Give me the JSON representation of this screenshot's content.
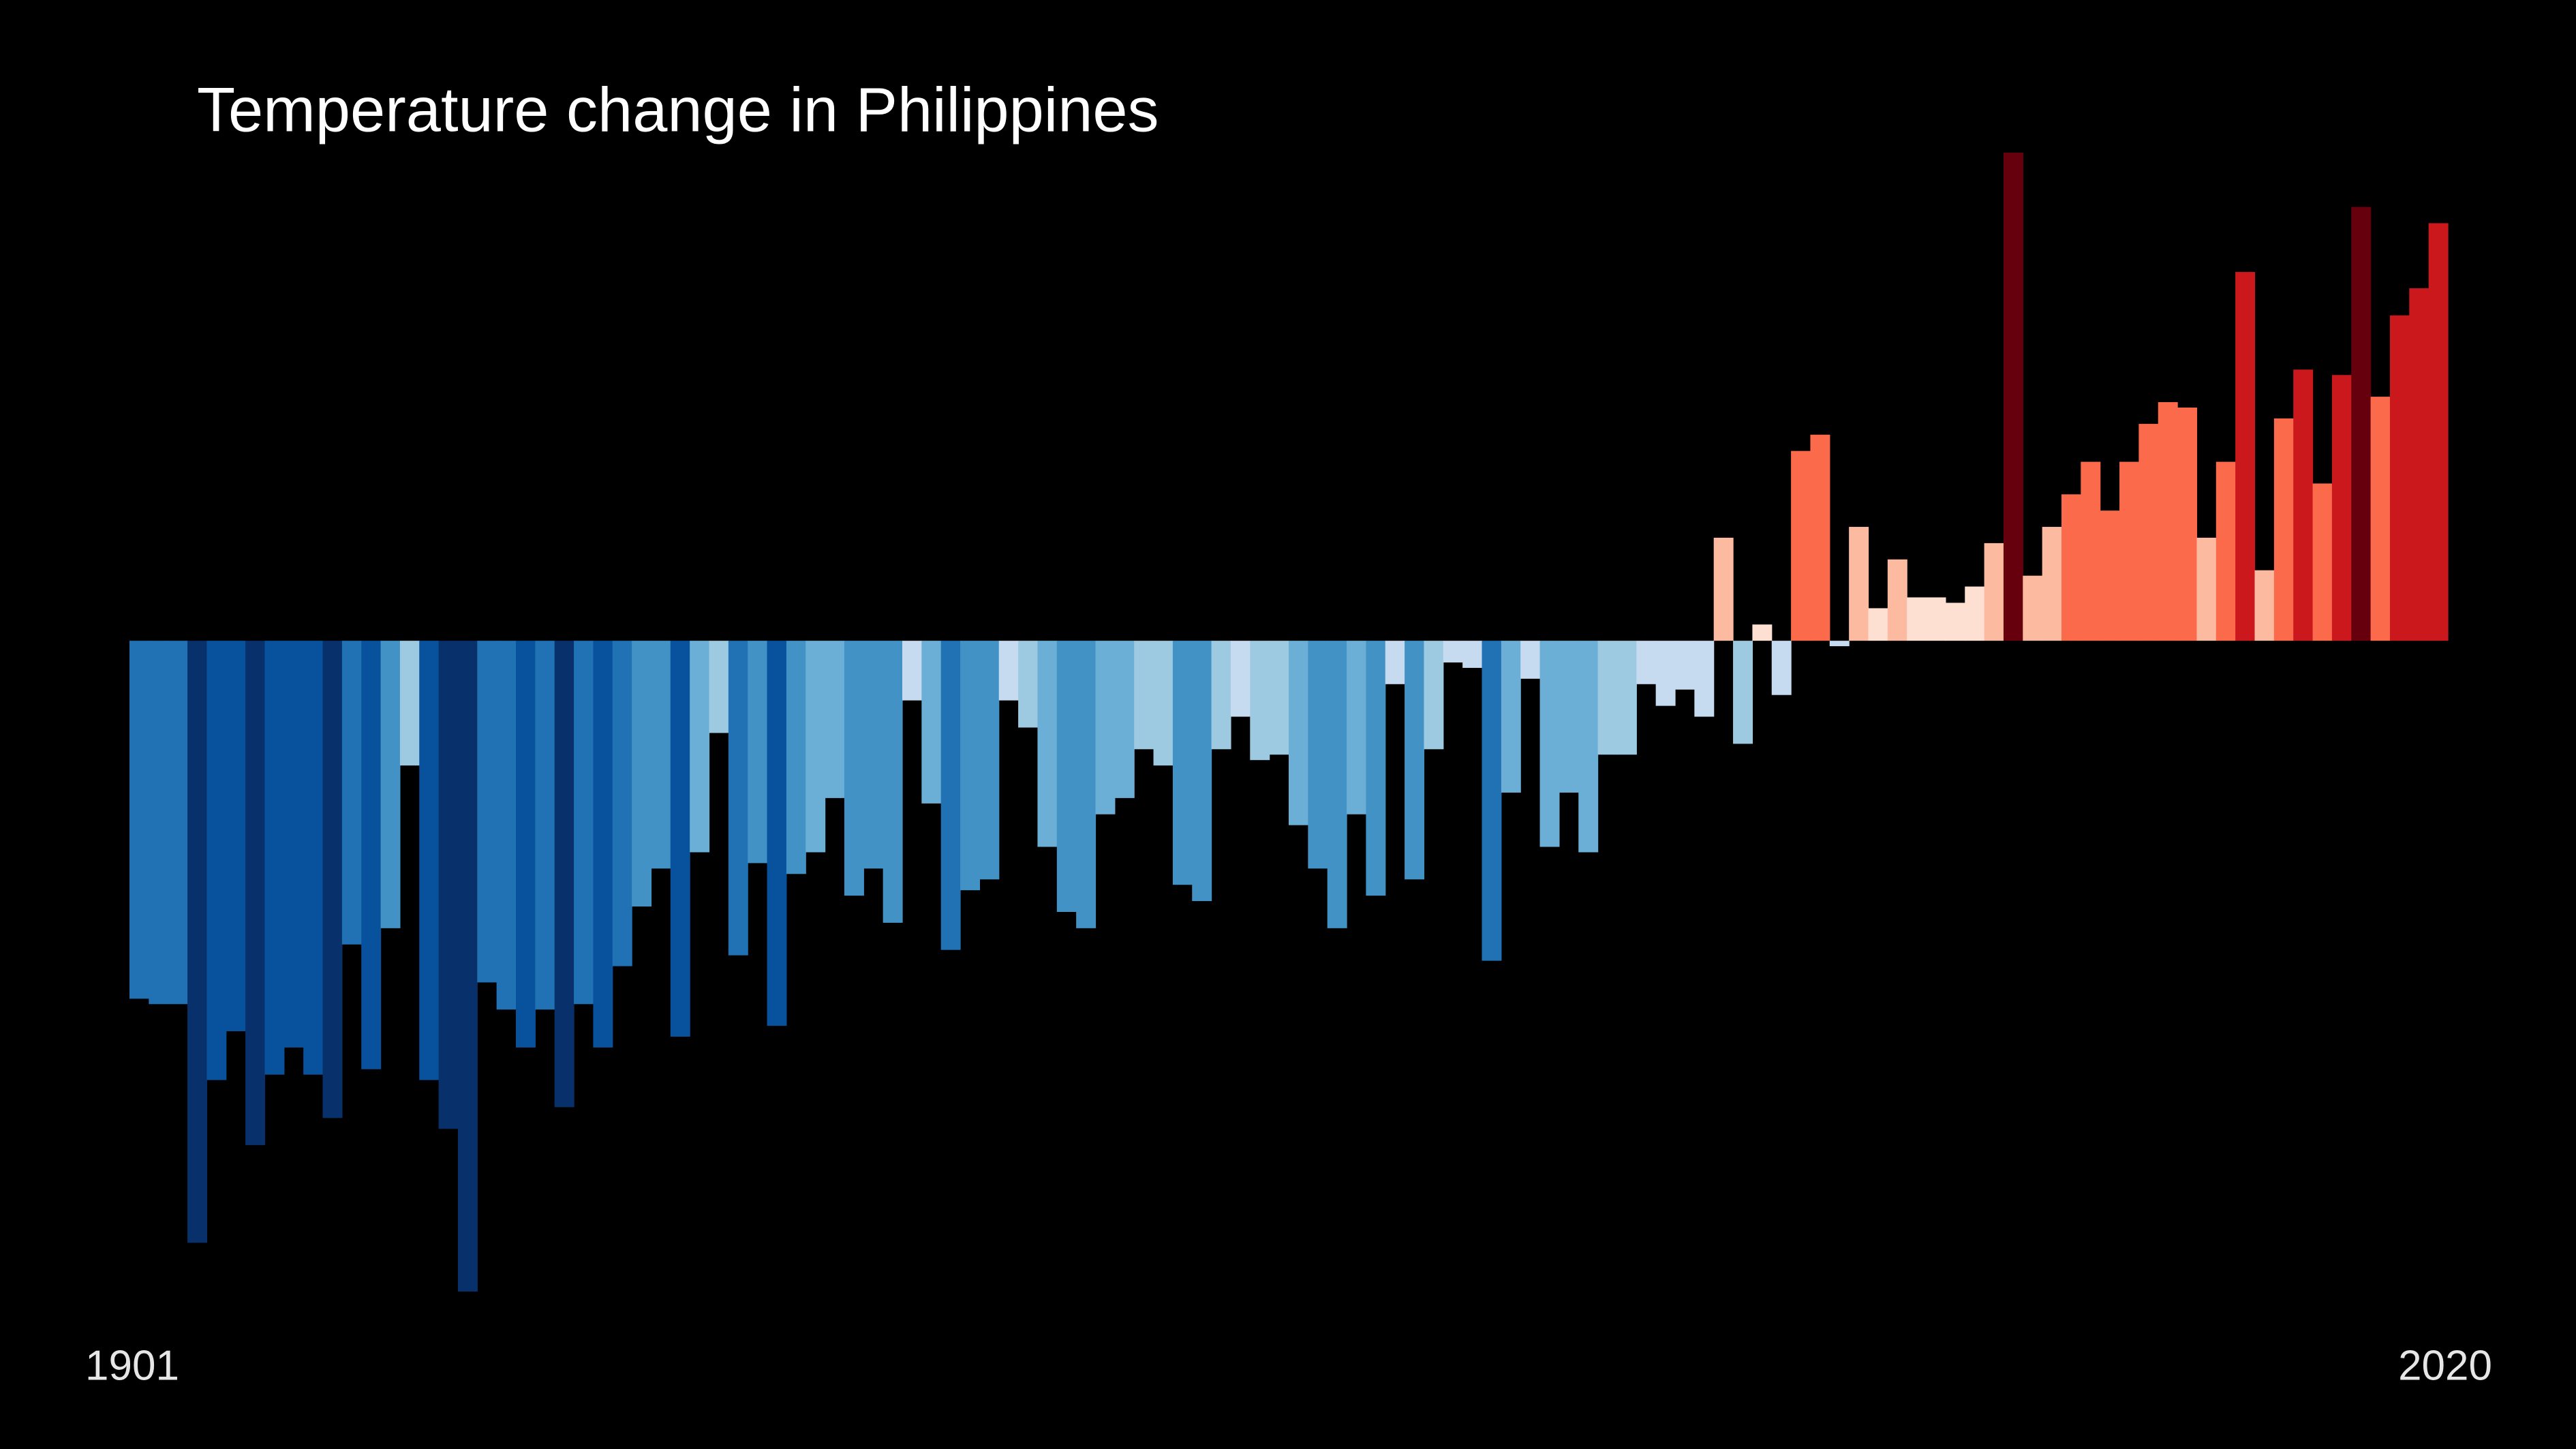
{
  "chart_data": {
    "type": "bar",
    "title": "Temperature change in Philippines",
    "categories": [
      "1901",
      null,
      null,
      null,
      null,
      null,
      null,
      null,
      null,
      null,
      null,
      null,
      null,
      null,
      null,
      null,
      null,
      null,
      null,
      null,
      null,
      null,
      null,
      null,
      null,
      null,
      null,
      null,
      null,
      null,
      null,
      null,
      null,
      null,
      null,
      null,
      null,
      null,
      null,
      null,
      null,
      null,
      null,
      null,
      null,
      null,
      null,
      null,
      null,
      null,
      null,
      null,
      null,
      null,
      null,
      null,
      null,
      null,
      null,
      null,
      null,
      null,
      null,
      null,
      null,
      null,
      null,
      null,
      null,
      null,
      null,
      null,
      null,
      null,
      null,
      null,
      null,
      null,
      null,
      null,
      null,
      null,
      null,
      null,
      null,
      null,
      null,
      null,
      null,
      null,
      null,
      null,
      null,
      null,
      null,
      null,
      null,
      null,
      null,
      null,
      null,
      null,
      null,
      null,
      null,
      null,
      null,
      null,
      null,
      null,
      null,
      null,
      null,
      null,
      null,
      null,
      null,
      null,
      null,
      "2020"
    ],
    "values": [
      -0.66,
      -0.67,
      -0.67,
      -1.11,
      -0.81,
      -0.72,
      -0.93,
      -0.8,
      -0.75,
      -0.8,
      -0.88,
      -0.56,
      -0.79,
      -0.53,
      -0.23,
      -0.81,
      -0.9,
      -1.2,
      -0.63,
      -0.68,
      -0.75,
      -0.68,
      -0.86,
      -0.67,
      -0.75,
      -0.6,
      -0.49,
      -0.42,
      -0.73,
      -0.39,
      -0.17,
      -0.58,
      -0.41,
      -0.71,
      -0.43,
      -0.39,
      -0.29,
      -0.47,
      -0.42,
      -0.52,
      -0.11,
      -0.3,
      -0.57,
      -0.46,
      -0.44,
      -0.11,
      -0.16,
      -0.38,
      -0.5,
      -0.53,
      -0.32,
      -0.29,
      -0.2,
      -0.23,
      -0.45,
      -0.48,
      -0.2,
      -0.14,
      -0.22,
      -0.21,
      -0.34,
      -0.42,
      -0.53,
      -0.32,
      -0.47,
      -0.08,
      -0.44,
      -0.2,
      -0.04,
      -0.05,
      -0.59,
      -0.28,
      -0.07,
      -0.38,
      -0.28,
      -0.39,
      -0.21,
      -0.21,
      -0.08,
      -0.12,
      -0.09,
      -0.14,
      0.19,
      -0.19,
      0.03,
      -0.1,
      0.35,
      0.38,
      -0.01,
      0.21,
      0.06,
      0.15,
      0.08,
      0.08,
      0.07,
      0.1,
      0.18,
      0.9,
      0.12,
      0.21,
      0.27,
      0.33,
      0.24,
      0.33,
      0.4,
      0.44,
      0.43,
      0.19,
      0.33,
      0.68,
      0.13,
      0.41,
      0.5,
      0.29,
      0.49,
      0.8,
      0.45,
      0.6,
      0.65,
      0.77
    ],
    "ylim": [
      -1.2,
      0.9
    ]
  }
}
